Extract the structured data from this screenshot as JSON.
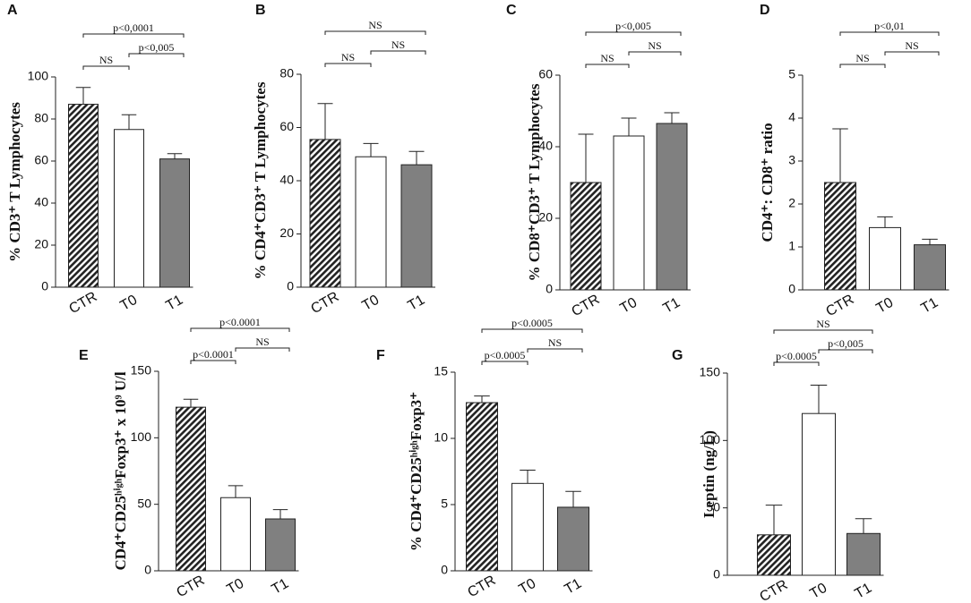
{
  "chart_data": [
    {
      "type": "bar",
      "label": "A",
      "ylabel": "% CD3⁺ T Lymphocytes",
      "categories": [
        "CTR",
        "T0",
        "T1"
      ],
      "values": [
        87,
        75,
        61
      ],
      "errors": [
        8,
        7,
        2.5
      ],
      "colors": [
        "#222222",
        "#ffffff",
        "#808080"
      ],
      "ylim": [
        0,
        100
      ],
      "yticks": [
        0,
        20,
        40,
        60,
        80,
        100
      ],
      "annotations": [
        "NS",
        "p<0,005",
        "p<0,0001"
      ]
    },
    {
      "type": "bar",
      "label": "B",
      "ylabel": "% CD4⁺CD3⁺ T Lymphocytes",
      "categories": [
        "CTR",
        "T0",
        "T1"
      ],
      "values": [
        55.5,
        49,
        46
      ],
      "errors": [
        13.5,
        5,
        5
      ],
      "colors": [
        "#222222",
        "#ffffff",
        "#808080"
      ],
      "ylim": [
        0,
        80
      ],
      "yticks": [
        0,
        20,
        40,
        60,
        80
      ],
      "annotations": [
        "NS",
        "NS",
        "NS"
      ]
    },
    {
      "type": "bar",
      "label": "C",
      "ylabel": "% CD8⁺CD3⁺ T Lymphocytes",
      "categories": [
        "CTR",
        "T0",
        "T1"
      ],
      "values": [
        30,
        43,
        46.5
      ],
      "errors": [
        13.5,
        5,
        3
      ],
      "colors": [
        "#222222",
        "#ffffff",
        "#808080"
      ],
      "ylim": [
        0,
        60
      ],
      "yticks": [
        0,
        20,
        40,
        60
      ],
      "annotations": [
        "NS",
        "NS",
        "p<0,005"
      ]
    },
    {
      "type": "bar",
      "label": "D",
      "ylabel": "CD4⁺: CD8⁺ ratio",
      "categories": [
        "CTR",
        "T0",
        "T1"
      ],
      "values": [
        2.5,
        1.45,
        1.05
      ],
      "errors": [
        1.25,
        0.25,
        0.13
      ],
      "colors": [
        "#222222",
        "#ffffff",
        "#808080"
      ],
      "ylim": [
        0,
        5
      ],
      "yticks": [
        0,
        1,
        2,
        3,
        4,
        5
      ],
      "annotations": [
        "NS",
        "NS",
        "p<0,01"
      ]
    },
    {
      "type": "bar",
      "label": "E",
      "ylabel": "CD4⁺CD25ʰⁱᵍʰFoxp3⁺ x 10⁹ U/l",
      "categories": [
        "CTR",
        "T0",
        "T1"
      ],
      "values": [
        123,
        55,
        39
      ],
      "errors": [
        6,
        9,
        7
      ],
      "colors": [
        "#222222",
        "#ffffff",
        "#808080"
      ],
      "ylim": [
        0,
        150
      ],
      "yticks": [
        0,
        50,
        100,
        150
      ],
      "annotations": [
        "p<0.0001",
        "NS",
        "p<0.0001"
      ]
    },
    {
      "type": "bar",
      "label": "F",
      "ylabel": "% CD4⁺CD25ʰⁱᵍʰFoxp3⁺",
      "categories": [
        "CTR",
        "T0",
        "T1"
      ],
      "values": [
        12.7,
        6.6,
        4.8
      ],
      "errors": [
        0.5,
        1,
        1.2
      ],
      "colors": [
        "#222222",
        "#ffffff",
        "#808080"
      ],
      "ylim": [
        0,
        15
      ],
      "yticks": [
        0,
        5,
        10,
        15
      ],
      "annotations": [
        "p<0.0005",
        "NS",
        "p<0.0005"
      ]
    },
    {
      "type": "bar",
      "label": "G",
      "ylabel": "Leptin (ng/L)",
      "categories": [
        "CTR",
        "T0",
        "T1"
      ],
      "values": [
        30,
        120,
        31
      ],
      "errors": [
        22,
        21,
        11
      ],
      "colors": [
        "#222222",
        "#ffffff",
        "#808080"
      ],
      "ylim": [
        0,
        150
      ],
      "yticks": [
        0,
        50,
        100,
        150
      ],
      "annotations": [
        "p<0.0005",
        "p<0,005",
        "NS"
      ]
    }
  ]
}
